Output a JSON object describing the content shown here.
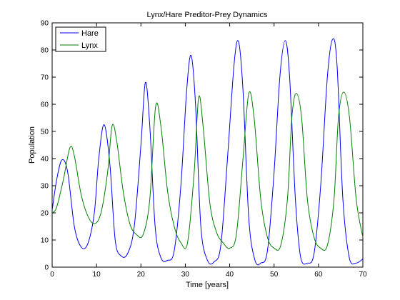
{
  "chart_data": {
    "type": "line",
    "title": "Lynx/Hare Preditor-Prey Dynamics",
    "xlabel": "Time [years]",
    "ylabel": "Population",
    "xlim": [
      0,
      70
    ],
    "ylim": [
      0,
      90
    ],
    "xticks": [
      0,
      10,
      20,
      30,
      40,
      50,
      60,
      70
    ],
    "yticks": [
      0,
      10,
      20,
      30,
      40,
      50,
      60,
      70,
      80,
      90
    ],
    "grid": false,
    "legend_position": "top-left",
    "series": [
      {
        "name": "Hare",
        "color": "#0000ff",
        "x": [
          0,
          1,
          2.2,
          3.5,
          5,
          6.5,
          8,
          9.5,
          10.5,
          11.7,
          13,
          14.2,
          15.5,
          17,
          18.5,
          20,
          21,
          22,
          23.2,
          24.5,
          26,
          27.5,
          29,
          30.3,
          31.3,
          32.3,
          33.5,
          35,
          36.5,
          38,
          39.5,
          41,
          42,
          43,
          44.3,
          45.7,
          47,
          48.5,
          50,
          51.3,
          52.5,
          53.5,
          54.8,
          56,
          57.5,
          59,
          60.5,
          62,
          63.2,
          64.2,
          65.5,
          67,
          68.5,
          70
        ],
        "y": [
          21,
          32,
          39.5,
          35,
          15,
          7.5,
          8.5,
          20,
          40,
          52.5,
          38,
          10,
          4.2,
          5,
          15,
          45,
          68,
          52,
          15,
          3.5,
          2.5,
          6,
          30,
          65,
          78,
          60,
          15,
          2.5,
          2,
          8,
          40,
          75,
          83,
          65,
          18,
          2.5,
          1.5,
          6,
          35,
          70,
          83.5,
          70,
          25,
          3.5,
          1.5,
          5,
          30,
          70,
          84,
          74,
          25,
          3,
          1.5,
          3
        ]
      },
      {
        "name": "Lynx",
        "color": "#007f00",
        "x": [
          0,
          1,
          2.5,
          4,
          5,
          6.5,
          8,
          9.5,
          11,
          12.5,
          13.5,
          14.5,
          16,
          17.5,
          19,
          20.5,
          22,
          23.3,
          24.5,
          26,
          27.5,
          29,
          30.5,
          32,
          33,
          34,
          35.5,
          37,
          38.5,
          40,
          41.5,
          43,
          44.3,
          45.5,
          47,
          48.5,
          50,
          51.5,
          53,
          54,
          55,
          56.2,
          57.5,
          59,
          60.5,
          62,
          63.5,
          64.5,
          65.7,
          67,
          68.5,
          70
        ],
        "y": [
          20,
          22,
          32,
          44,
          41,
          27,
          19,
          16,
          20,
          35,
          52,
          47,
          28,
          16,
          12,
          12,
          25,
          59,
          52,
          28,
          15,
          9,
          9,
          35,
          62.5,
          52,
          24,
          13,
          9,
          7,
          12,
          40,
          64,
          55,
          25,
          11,
          7,
          8,
          25,
          55,
          64,
          55,
          25,
          11,
          7,
          8,
          25,
          55,
          64.5,
          55,
          25,
          11
        ]
      }
    ]
  }
}
